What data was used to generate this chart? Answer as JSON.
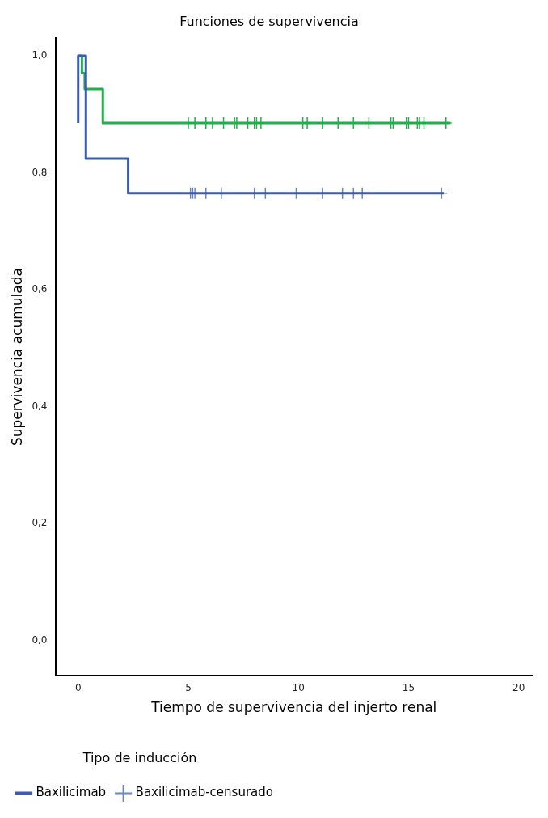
{
  "chart_data": {
    "type": "line",
    "title": "Funciones de supervivencia",
    "xlabel": "Tiempo de supervivencia del injerto renal",
    "ylabel": "Supervivencia acumulada",
    "legend_title": "Tipo de inducción",
    "xlim": [
      -1,
      20.6
    ],
    "xticks": [
      0,
      5,
      10,
      15,
      20
    ],
    "ylim": [
      -0.06,
      1.03
    ],
    "yticks": [
      {
        "value": 0,
        "label": "0,0"
      },
      {
        "value": 0.2,
        "label": "0,2"
      },
      {
        "value": 0.4,
        "label": "0,4"
      },
      {
        "value": 0.6,
        "label": "0,6"
      },
      {
        "value": 0.8,
        "label": "0,8"
      },
      {
        "value": 1,
        "label": "1,0"
      }
    ],
    "grid": false,
    "legend": "bottom",
    "line_style": "solid",
    "marker": "none",
    "series": [
      {
        "name": "Baxilicimab",
        "color": "#3a5bb0",
        "x": [
          0,
          0,
          0.35,
          0.35,
          2.27,
          2.27,
          16.6
        ],
        "values": [
          0.885,
          1,
          1,
          0.824,
          0.824,
          0.765,
          0.765
        ]
      },
      {
        "color": "#1fb04a",
        "x": [
          0,
          0.17,
          0.17,
          0.3,
          0.3,
          1.12,
          1.12,
          16.9
        ],
        "values": [
          1,
          1,
          0.97,
          0.97,
          0.943,
          0.943,
          0.885,
          0.885
        ]
      },
      {
        "name": "Baxilicimab-censurado",
        "type": "scatter",
        "marker": "cross",
        "color": "#6b84c8",
        "x": [
          5.1,
          5.2,
          5.3,
          5.8,
          6.5,
          8.0,
          8.5,
          9.9,
          11.1,
          12.0,
          12.5,
          12.9,
          16.5
        ],
        "values": [
          0.765,
          0.765,
          0.765,
          0.765,
          0.765,
          0.765,
          0.765,
          0.765,
          0.765,
          0.765,
          0.765,
          0.765,
          0.765
        ]
      },
      {
        "type": "scatter",
        "marker": "cross",
        "color": "#1fb04a",
        "x": [
          5.0,
          5.3,
          5.8,
          6.1,
          6.6,
          7.1,
          7.2,
          7.7,
          8.0,
          8.1,
          8.3,
          10.2,
          10.4,
          11.1,
          11.8,
          12.5,
          13.2,
          14.2,
          14.3,
          14.9,
          15.0,
          15.4,
          15.5,
          15.7,
          16.7
        ],
        "values": [
          0.885,
          0.885,
          0.885,
          0.885,
          0.885,
          0.885,
          0.885,
          0.885,
          0.885,
          0.885,
          0.885,
          0.885,
          0.885,
          0.885,
          0.885,
          0.885,
          0.885,
          0.885,
          0.885,
          0.885,
          0.885,
          0.885,
          0.885,
          0.885,
          0.885
        ]
      }
    ]
  }
}
